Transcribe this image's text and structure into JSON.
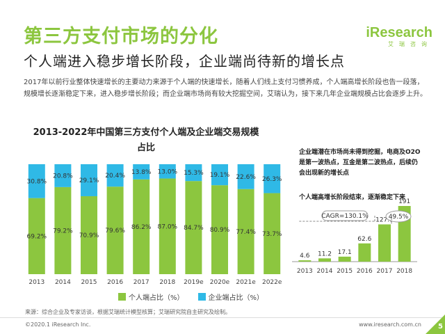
{
  "header": {
    "title": "第三方支付市场的分化",
    "subtitle": "个人端进入稳步增长阶段，企业端尚待新的增长点",
    "logo_text": "iResearch",
    "logo_sub": "艾瑞咨询"
  },
  "paragraph": "2017年以前行业整体快速增长的主要动力来源于个人端的快速增长，随着人们线上支付习惯养成，个人端高增长阶段也告一段落，规模增长逐渐稳定下来，进入稳步增长阶段；而企业端市场尚有较大挖掘空间，艾瑞认为，接下来几年企业端规模占比会逐步上升。",
  "chart_data": [
    {
      "type": "bar",
      "stacked": true,
      "title_line1": "2013-2022年中国第三方支付个人端及企业端交易规模",
      "title_line2": "占比",
      "categories": [
        "2013",
        "2014",
        "2015",
        "2016",
        "2017",
        "2018",
        "2019e",
        "2020e",
        "2021e",
        "2022e"
      ],
      "series": [
        {
          "name": "个人端占比（%）",
          "color": "#8cc63f",
          "values": [
            69.2,
            79.2,
            70.9,
            79.6,
            86.2,
            87.0,
            84.7,
            80.9,
            77.4,
            73.7
          ]
        },
        {
          "name": "企业端占比（%）",
          "color": "#2fb9e6",
          "values": [
            30.8,
            20.8,
            29.1,
            20.4,
            13.8,
            13.0,
            15.3,
            19.1,
            22.6,
            26.3
          ]
        }
      ],
      "ylim": [
        0,
        100
      ],
      "legend": "bottom",
      "grid": false
    },
    {
      "type": "bar",
      "categories": [
        "2013",
        "2014",
        "2015",
        "2016",
        "2017",
        "2018"
      ],
      "values": [
        4.6,
        11.2,
        17.1,
        62.6,
        127.8,
        191.0
      ],
      "color": "#8cc63f",
      "annotations": [
        "CAGR=130.1%",
        "49.5%"
      ]
    }
  ],
  "annotations": {
    "side_note": "企业端潜在市场尚未得到挖掘，电商及O2O是第一波热点，互金是第二波热点，后续仍会出现新的增长点",
    "side_note2": "个人端高增长阶段结束，逐渐稳定下来"
  },
  "footer": {
    "source": "来源：综合企业及专家访谈，根据艾瑞统计模型核算；艾瑞研究院自主研究及绘制。",
    "copyright": "©2020.1 iResearch Inc.",
    "website": "www.iresearch.com.cn",
    "page": "5"
  }
}
